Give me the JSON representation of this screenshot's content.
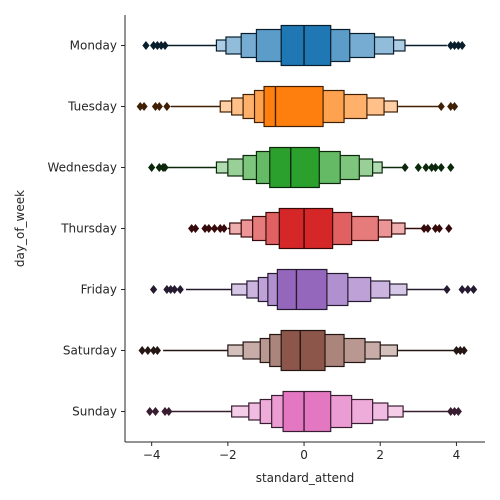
{
  "chart_data": {
    "type": "boxen",
    "orientation": "horizontal",
    "xlabel": "standard_attend",
    "ylabel": "day_of_week",
    "xlim": [
      -4.7,
      4.75
    ],
    "xticks": [
      -4,
      -2,
      0,
      2,
      4
    ],
    "xtick_labels": [
      "−4",
      "−2",
      "0",
      "2",
      "4"
    ],
    "grid": false,
    "categories": [
      "Monday",
      "Tuesday",
      "Wednesday",
      "Thursday",
      "Friday",
      "Saturday",
      "Sunday"
    ],
    "series": [
      {
        "category": "Monday",
        "color": "#1f77b4",
        "median": 0.0,
        "whisker": [
          -3.6,
          3.75
        ],
        "boxes": [
          [
            -0.6,
            0.7
          ],
          [
            -1.25,
            1.2
          ],
          [
            -1.65,
            1.85
          ],
          [
            -2.05,
            2.35
          ],
          [
            -2.3,
            2.65
          ]
        ],
        "outliers": [
          -4.15,
          -3.95,
          -3.85,
          -3.75,
          -3.65,
          3.85,
          3.95,
          4.05,
          4.15
        ]
      },
      {
        "category": "Tuesday",
        "color": "#ff7f0e",
        "median": -0.75,
        "whisker": [
          -3.5,
          3.55
        ],
        "boxes": [
          [
            -1.05,
            0.5
          ],
          [
            -1.3,
            1.05
          ],
          [
            -1.6,
            1.65
          ],
          [
            -1.9,
            2.1
          ],
          [
            -2.2,
            2.45
          ]
        ],
        "outliers": [
          -4.3,
          -4.2,
          -3.9,
          -3.8,
          -3.6,
          3.6,
          3.85,
          3.95
        ]
      },
      {
        "category": "Wednesday",
        "color": "#2ca02c",
        "median": -0.35,
        "whisker": [
          -3.6,
          2.6
        ],
        "boxes": [
          [
            -0.9,
            0.4
          ],
          [
            -1.25,
            0.95
          ],
          [
            -1.6,
            1.45
          ],
          [
            -2.0,
            1.8
          ],
          [
            -2.3,
            2.05
          ]
        ],
        "outliers": [
          -4.0,
          -3.8,
          -3.7,
          -3.65,
          2.65,
          3.0,
          3.2,
          3.35,
          3.45,
          3.6,
          3.85
        ]
      },
      {
        "category": "Thursday",
        "color": "#d62728",
        "median": 0.0,
        "whisker": [
          -2.0,
          3.1
        ],
        "boxes": [
          [
            -0.65,
            0.75
          ],
          [
            -1.0,
            1.25
          ],
          [
            -1.35,
            1.95
          ],
          [
            -1.65,
            2.3
          ],
          [
            -1.95,
            2.65
          ]
        ],
        "outliers": [
          -2.95,
          -2.85,
          -2.6,
          -2.5,
          -2.35,
          -2.2,
          -2.1,
          3.15,
          3.25,
          3.45,
          3.55,
          3.8
        ]
      },
      {
        "category": "Friday",
        "color": "#9467bd",
        "median": -0.2,
        "whisker": [
          -3.1,
          3.7
        ],
        "boxes": [
          [
            -0.7,
            0.6
          ],
          [
            -0.95,
            1.15
          ],
          [
            -1.2,
            1.75
          ],
          [
            -1.5,
            2.25
          ],
          [
            -1.9,
            2.7
          ]
        ],
        "outliers": [
          -3.95,
          -3.6,
          -3.5,
          -3.4,
          -3.25,
          3.75,
          4.15,
          4.3,
          4.45
        ]
      },
      {
        "category": "Saturday",
        "color": "#8c564b",
        "median": -0.1,
        "whisker": [
          -3.7,
          3.95
        ],
        "boxes": [
          [
            -0.6,
            0.55
          ],
          [
            -0.9,
            1.05
          ],
          [
            -1.15,
            1.6
          ],
          [
            -1.6,
            2.0
          ],
          [
            -2.0,
            2.45
          ]
        ],
        "outliers": [
          -4.25,
          -4.1,
          -3.95,
          -3.85,
          4.0,
          4.1,
          4.2
        ]
      },
      {
        "category": "Sunday",
        "color": "#e377c2",
        "median": 0.0,
        "whisker": [
          -3.5,
          3.8
        ],
        "boxes": [
          [
            -0.55,
            0.7
          ],
          [
            -0.85,
            1.25
          ],
          [
            -1.15,
            1.8
          ],
          [
            -1.45,
            2.2
          ],
          [
            -1.9,
            2.6
          ]
        ],
        "outliers": [
          -4.05,
          -3.9,
          -3.65,
          -3.55,
          3.85,
          3.95,
          4.05
        ]
      }
    ]
  }
}
